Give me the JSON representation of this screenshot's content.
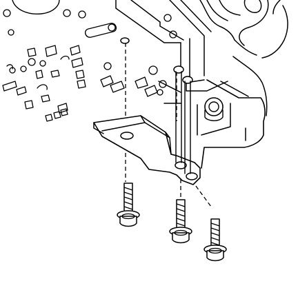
{
  "diagram": {
    "type": "exploded-view line illustration",
    "colors": {
      "ink": "#000000",
      "paper": "#ffffff"
    },
    "parts": {
      "housing": "valve-body-casting",
      "bracket": "mounting-bracket",
      "bolts": [
        "bolt-1",
        "bolt-2",
        "bolt-3"
      ]
    }
  }
}
